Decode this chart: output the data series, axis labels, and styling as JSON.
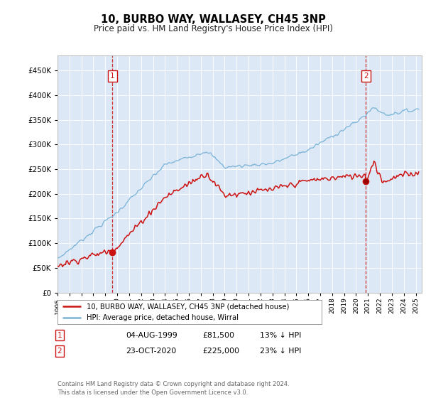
{
  "title": "10, BURBO WAY, WALLASEY, CH45 3NP",
  "subtitle": "Price paid vs. HM Land Registry's House Price Index (HPI)",
  "background_color": "#ffffff",
  "plot_bg_color": "#dce8f5",
  "hpi_color": "#7ab3d8",
  "price_color": "#cc1111",
  "ann1_year": 1999.59,
  "ann2_year": 2020.81,
  "ann1_price": 81500,
  "ann2_price": 225000,
  "ylim": [
    0,
    480000
  ],
  "yticks": [
    0,
    50000,
    100000,
    150000,
    200000,
    250000,
    300000,
    350000,
    400000,
    450000
  ],
  "xlim_start": 1995.0,
  "xlim_end": 2025.5,
  "legend_label_price": "10, BURBO WAY, WALLASEY, CH45 3NP (detached house)",
  "legend_label_hpi": "HPI: Average price, detached house, Wirral",
  "footer": "Contains HM Land Registry data © Crown copyright and database right 2024.\nThis data is licensed under the Open Government Licence v3.0.",
  "table_rows": [
    {
      "num": "1",
      "date": "04-AUG-1999",
      "price": "£81,500",
      "note": "13% ↓ HPI"
    },
    {
      "num": "2",
      "date": "23-OCT-2020",
      "price": "£225,000",
      "note": "23% ↓ HPI"
    }
  ]
}
